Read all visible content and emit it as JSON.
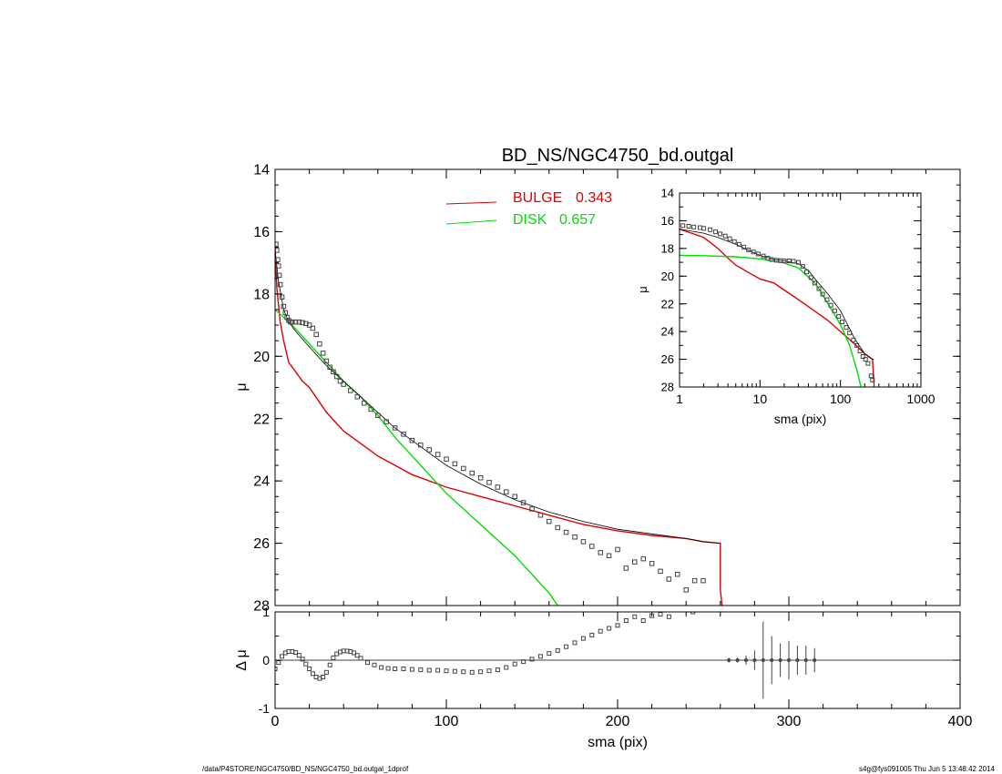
{
  "chart_data": [
    {
      "type": "scatter",
      "title": "BD_NS/NGC4750_bd.outgal",
      "ylabel": "μ",
      "xlim": [
        0,
        400
      ],
      "ylim": [
        28,
        14
      ],
      "y_ticks": [
        "14",
        "16",
        "18",
        "20",
        "22",
        "24",
        "26",
        "28"
      ],
      "legend": {
        "position": "top-center",
        "entries": [
          {
            "label": "BULGE",
            "value": "0.343",
            "color": "#dd0000"
          },
          {
            "label": "DISK",
            "value": "0.657",
            "color": "#00dd00"
          }
        ]
      },
      "series": [
        {
          "name": "BULGE",
          "kind": "line",
          "color": "#dd0000",
          "x": [
            0,
            1,
            3,
            5,
            8,
            12,
            16,
            20,
            25,
            30,
            40,
            50,
            60,
            70,
            80,
            100,
            120,
            140,
            160,
            180,
            200,
            220,
            240,
            250,
            260,
            260,
            261
          ],
          "y": [
            16.5,
            17.8,
            18.9,
            19.5,
            20.2,
            20.5,
            20.8,
            21.0,
            21.4,
            21.8,
            22.4,
            22.8,
            23.2,
            23.5,
            23.8,
            24.2,
            24.5,
            24.8,
            25.1,
            25.4,
            25.6,
            25.75,
            25.85,
            25.95,
            26.0,
            27.5,
            28.0
          ]
        },
        {
          "name": "DISK",
          "kind": "line",
          "color": "#00dd00",
          "x": [
            0,
            5,
            10,
            20,
            30,
            40,
            50,
            60,
            70,
            80,
            90,
            100,
            110,
            120,
            130,
            140,
            150,
            160,
            165
          ],
          "y": [
            18.5,
            18.75,
            19.0,
            19.6,
            20.2,
            20.8,
            21.3,
            21.9,
            22.6,
            23.2,
            23.8,
            24.4,
            24.9,
            25.4,
            25.9,
            26.4,
            27.0,
            27.6,
            28.0
          ]
        },
        {
          "name": "MODEL",
          "kind": "line",
          "color": "#000000",
          "x": [
            0,
            2,
            5,
            8,
            12,
            16,
            20,
            25,
            30,
            40,
            50,
            60,
            70,
            80,
            90,
            100,
            120,
            140,
            160,
            180,
            200,
            220,
            240,
            250,
            260
          ],
          "y": [
            16.6,
            17.6,
            18.5,
            18.9,
            19.2,
            19.45,
            19.7,
            20.0,
            20.3,
            20.8,
            21.3,
            21.8,
            22.3,
            22.7,
            23.1,
            23.5,
            24.1,
            24.6,
            25.0,
            25.3,
            25.55,
            25.7,
            25.85,
            25.95,
            26.0
          ]
        },
        {
          "name": "DATA",
          "kind": "points",
          "color": "#444444",
          "x": [
            0.5,
            1,
            1.5,
            2,
            2.5,
            3,
            4,
            5,
            6,
            7,
            8,
            9,
            10,
            12,
            14,
            16,
            18,
            20,
            22,
            24,
            26,
            28,
            30,
            32,
            34,
            36,
            38,
            40,
            44,
            48,
            52,
            56,
            60,
            65,
            70,
            75,
            80,
            85,
            90,
            95,
            100,
            105,
            110,
            115,
            120,
            125,
            130,
            135,
            140,
            145,
            150,
            155,
            160,
            165,
            170,
            175,
            180,
            185,
            190,
            195,
            200,
            205,
            210,
            215,
            220,
            225,
            230,
            235,
            240,
            245,
            250
          ],
          "y": [
            16.4,
            16.6,
            16.9,
            17.1,
            17.4,
            17.7,
            18.1,
            18.4,
            18.6,
            18.75,
            18.85,
            18.9,
            18.9,
            18.9,
            18.9,
            18.92,
            18.95,
            19.0,
            19.1,
            19.3,
            19.6,
            19.9,
            20.15,
            20.35,
            20.5,
            20.65,
            20.8,
            20.9,
            21.1,
            21.3,
            21.5,
            21.7,
            21.9,
            22.1,
            22.3,
            22.5,
            22.7,
            22.85,
            23.0,
            23.15,
            23.3,
            23.45,
            23.6,
            23.75,
            23.9,
            24.05,
            24.2,
            24.35,
            24.5,
            24.7,
            24.9,
            25.1,
            25.3,
            25.5,
            25.65,
            25.8,
            25.95,
            26.1,
            26.3,
            26.4,
            26.2,
            26.8,
            26.6,
            26.5,
            26.65,
            26.9,
            27.15,
            27.0,
            27.5,
            27.2,
            27.2
          ]
        }
      ]
    },
    {
      "type": "scatter",
      "xlabel": "sma (pix)",
      "ylabel": "Δ μ",
      "xlim": [
        0,
        400
      ],
      "ylim": [
        -1,
        1
      ],
      "x_ticks": [
        "0",
        "100",
        "200",
        "300",
        "400"
      ],
      "y_ticks": [
        "1",
        "0",
        "-1"
      ],
      "series": [
        {
          "name": "RESIDUAL",
          "kind": "points",
          "color": "#444444",
          "x": [
            0,
            2,
            4,
            6,
            8,
            10,
            12,
            14,
            16,
            18,
            20,
            22,
            24,
            26,
            28,
            30,
            32,
            34,
            36,
            38,
            40,
            42,
            44,
            46,
            48,
            50,
            54,
            58,
            62,
            66,
            70,
            75,
            80,
            85,
            90,
            95,
            100,
            105,
            110,
            115,
            120,
            125,
            130,
            135,
            140,
            145,
            150,
            155,
            160,
            165,
            170,
            175,
            180,
            185,
            190,
            195,
            200,
            205,
            210,
            215,
            220,
            225,
            230,
            244
          ],
          "y": [
            -0.18,
            -0.05,
            0.08,
            0.15,
            0.18,
            0.18,
            0.16,
            0.1,
            0.02,
            -0.08,
            -0.18,
            -0.28,
            -0.35,
            -0.38,
            -0.35,
            -0.25,
            -0.1,
            0.05,
            0.13,
            0.17,
            0.19,
            0.19,
            0.18,
            0.15,
            0.1,
            0.04,
            -0.05,
            -0.1,
            -0.15,
            -0.17,
            -0.18,
            -0.18,
            -0.19,
            -0.2,
            -0.21,
            -0.21,
            -0.22,
            -0.23,
            -0.24,
            -0.25,
            -0.24,
            -0.22,
            -0.2,
            -0.15,
            -0.08,
            -0.03,
            0.02,
            0.08,
            0.14,
            0.2,
            0.28,
            0.36,
            0.45,
            0.52,
            0.6,
            0.66,
            0.72,
            0.82,
            0.9,
            0.82,
            0.92,
            0.95,
            0.9,
            1.0
          ]
        },
        {
          "name": "RESIDUAL_ERR",
          "kind": "errorbars",
          "color": "#444444",
          "x": [
            265,
            270,
            275,
            280,
            285,
            290,
            295,
            300,
            305,
            310,
            315
          ],
          "y": [
            0,
            0,
            0,
            0,
            0,
            0,
            0,
            0,
            0,
            0,
            0
          ],
          "err": [
            0.05,
            0.05,
            0.1,
            0.2,
            0.8,
            0.5,
            0.35,
            0.4,
            0.3,
            0.3,
            0.25
          ]
        }
      ]
    },
    {
      "type": "scatter",
      "xlabel": "sma (pix)",
      "ylabel": "μ",
      "xscale": "log",
      "xlim": [
        1,
        1000
      ],
      "ylim": [
        28,
        14
      ],
      "x_ticks": [
        "1",
        "10",
        "100",
        "1000"
      ],
      "y_ticks": [
        "14",
        "16",
        "18",
        "20",
        "22",
        "24",
        "26",
        "28"
      ],
      "series": [
        {
          "name": "BULGE",
          "kind": "line",
          "color": "#dd0000",
          "x": [
            1,
            2,
            3,
            4,
            5,
            7,
            10,
            15,
            20,
            30,
            50,
            70,
            100,
            150,
            200,
            250,
            260,
            262
          ],
          "y": [
            16.6,
            17.2,
            18.0,
            18.7,
            19.2,
            19.7,
            20.2,
            20.5,
            21.0,
            21.7,
            22.6,
            23.2,
            24.0,
            24.9,
            25.6,
            26.0,
            27.5,
            28.0
          ]
        },
        {
          "name": "DISK",
          "kind": "line",
          "color": "#00dd00",
          "x": [
            1,
            2,
            5,
            10,
            20,
            30,
            50,
            70,
            100,
            130,
            160,
            180
          ],
          "y": [
            18.5,
            18.52,
            18.6,
            18.75,
            19.05,
            19.4,
            20.6,
            22.0,
            23.5,
            25.0,
            26.8,
            28.0
          ]
        },
        {
          "name": "MODEL",
          "kind": "line",
          "color": "#000000",
          "x": [
            1,
            2,
            3,
            5,
            7,
            10,
            15,
            20,
            30,
            40,
            50,
            70,
            100,
            150,
            200,
            250,
            260
          ],
          "y": [
            16.6,
            16.9,
            17.2,
            17.7,
            18.1,
            18.5,
            18.8,
            18.9,
            19.1,
            19.6,
            20.3,
            21.3,
            22.5,
            24.5,
            25.6,
            26.0,
            26.0
          ]
        },
        {
          "name": "DATA",
          "kind": "points",
          "color": "#444444",
          "x": [
            1.1,
            1.3,
            1.5,
            1.8,
            2.0,
            2.4,
            2.8,
            3.2,
            3.7,
            4.2,
            4.8,
            5.5,
            6.3,
            7.2,
            8.3,
            9.5,
            11,
            12.5,
            14,
            16,
            18,
            20,
            23,
            26,
            30,
            34,
            38,
            43,
            48,
            54,
            60,
            68,
            76,
            85,
            95,
            105,
            118,
            130,
            145,
            160,
            175,
            190,
            205,
            220,
            240,
            250
          ],
          "y": [
            16.35,
            16.4,
            16.45,
            16.5,
            16.55,
            16.65,
            16.8,
            16.95,
            17.1,
            17.3,
            17.5,
            17.7,
            17.9,
            18.1,
            18.25,
            18.4,
            18.55,
            18.7,
            18.8,
            18.85,
            18.88,
            18.9,
            18.9,
            18.92,
            19.0,
            19.3,
            19.7,
            20.1,
            20.5,
            20.9,
            21.3,
            21.7,
            22.1,
            22.5,
            22.9,
            23.3,
            23.7,
            24.1,
            24.6,
            25.0,
            25.4,
            25.8,
            26.0,
            26.3,
            27.2,
            27.5
          ]
        }
      ]
    }
  ],
  "footer": {
    "left": "/data/P4STORE/NGC4750/BD_NS/NGC4750_bd.outgal_1dprof",
    "right": "s4g@fys091005  Thu Jun  5 13:48:42 2014"
  }
}
